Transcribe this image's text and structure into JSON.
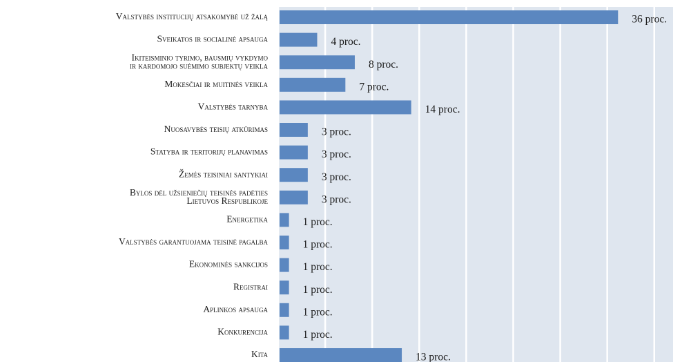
{
  "chart_data": {
    "type": "bar",
    "orientation": "horizontal",
    "categories": [
      "Valstybės institucijų atsakomybė už žalą",
      "Sveikatos ir socialinė apsauga",
      [
        "Ikiteisminio tyrimo, bausmių vykdymo",
        "ir kardomojo suėmimo subjektų veikla"
      ],
      "Mokesčiai ir muitinės veikla",
      "Valstybės tarnyba",
      "Nuosavybės teisių atkūrimas",
      "Statyba ir teritorijų planavimas",
      "Žemės teisiniai santykiai",
      [
        "Bylos dėl užsieniečių teisinės padėties",
        "Lietuvos Respublikoje"
      ],
      "Energetika",
      "Valstybės garantuojama teisinė pagalba",
      "Ekonominės sankcijos",
      "Registrai",
      "Aplinkos apsauga",
      "Konkurencija",
      "Kita"
    ],
    "values": [
      36,
      4,
      8,
      7,
      14,
      3,
      3,
      3,
      3,
      1,
      1,
      1,
      1,
      1,
      1,
      13
    ],
    "value_labels": [
      "36 proc.",
      "4 proc.",
      "8 proc.",
      "7 proc.",
      "14 proc.",
      "3 proc.",
      "3 proc.",
      "3 proc.",
      "3 proc.",
      "1 proc.",
      "1 proc.",
      "1 proc.",
      "1 proc.",
      "1 proc.",
      "1 proc.",
      "13 proc."
    ],
    "color": "#5b87c0",
    "xlim": [
      0,
      42
    ],
    "xticks": [
      0,
      5,
      10,
      15,
      20,
      25,
      30,
      35,
      40
    ],
    "grid": true
  }
}
